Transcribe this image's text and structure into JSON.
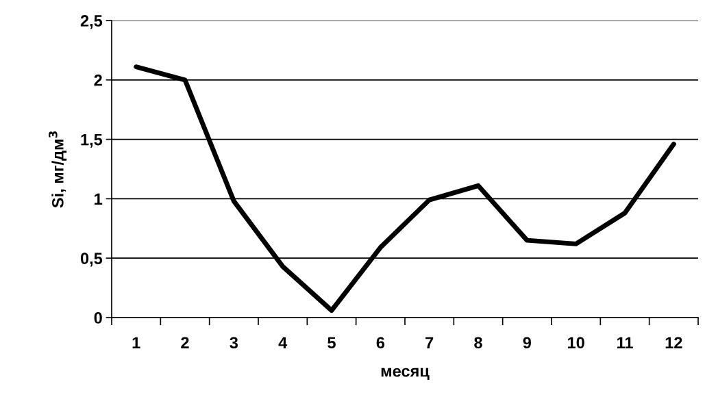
{
  "chart_data": {
    "type": "line",
    "xlabel": "месяц",
    "ylabel": "Si, мг/дм$^{3}$",
    "categories": [
      "1",
      "2",
      "3",
      "4",
      "5",
      "6",
      "7",
      "8",
      "9",
      "10",
      "11",
      "12"
    ],
    "series": [
      {
        "color": "#000000",
        "values": [
          2.11,
          2.0,
          0.98,
          0.43,
          0.06,
          0.59,
          0.99,
          1.11,
          0.65,
          0.62,
          0.88,
          1.46
        ]
      }
    ],
    "ylim": [
      0,
      2.5
    ],
    "yticks": [
      0,
      {
        "value": 0.5,
        "label": "0,5"
      },
      1,
      {
        "value": 1.5,
        "label": "1,5"
      },
      2,
      {
        "value": 2.5,
        "label": "2,5"
      }
    ],
    "grid": "y",
    "legend": false,
    "marker": "none",
    "line_style": "solid"
  }
}
